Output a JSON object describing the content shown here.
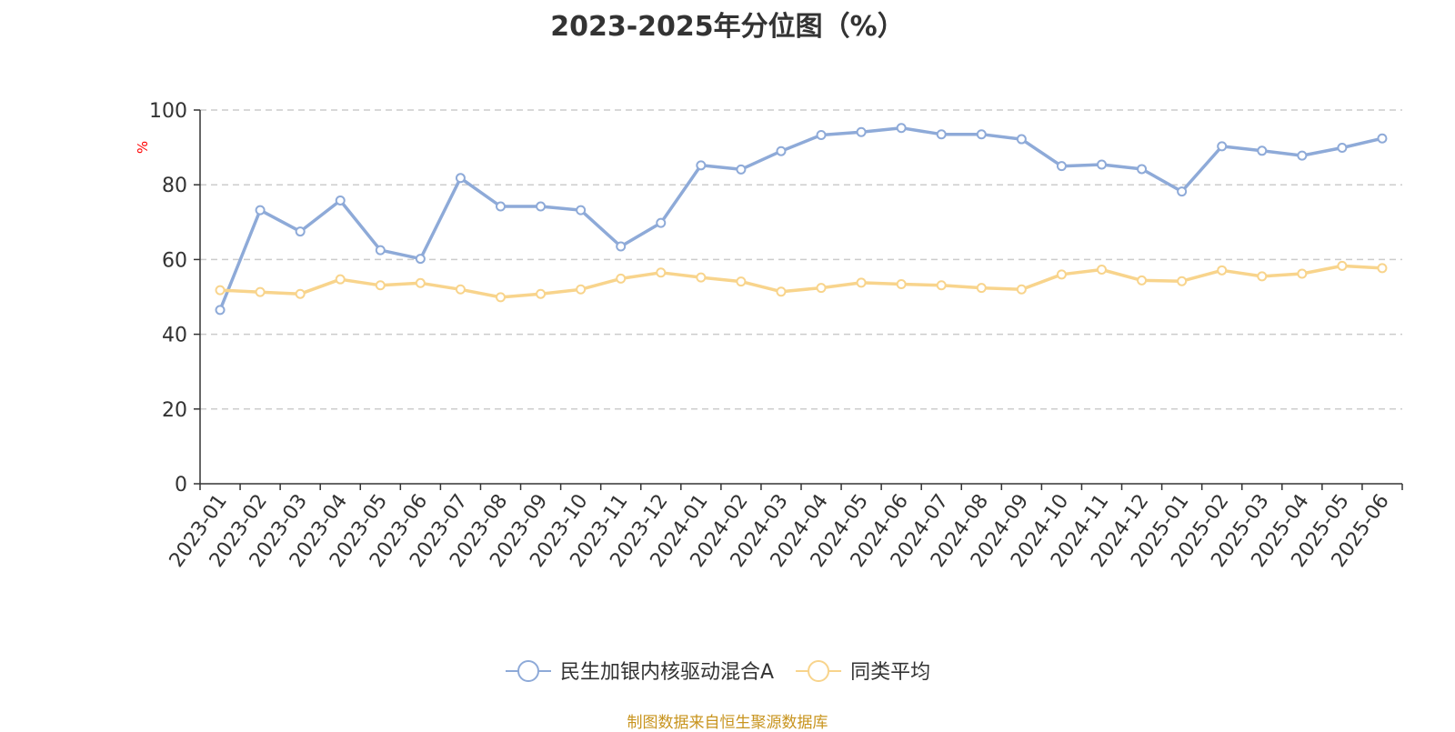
{
  "chart_data": {
    "type": "line",
    "title": "2023-2025年分位图（%）",
    "ylabel": "%",
    "xlabel": "",
    "ylim": [
      0,
      100
    ],
    "yticks": [
      0,
      20,
      40,
      60,
      80,
      100
    ],
    "grid": true,
    "legend_position": "bottom-center",
    "categories": [
      "2023-01",
      "2023-02",
      "2023-03",
      "2023-04",
      "2023-05",
      "2023-06",
      "2023-07",
      "2023-08",
      "2023-09",
      "2023-10",
      "2023-11",
      "2023-12",
      "2024-01",
      "2024-02",
      "2024-03",
      "2024-04",
      "2024-05",
      "2024-06",
      "2024-07",
      "2024-08",
      "2024-09",
      "2024-10",
      "2024-11",
      "2024-12",
      "2025-01",
      "2025-02",
      "2025-03",
      "2025-04",
      "2025-05",
      "2025-06"
    ],
    "series": [
      {
        "name": "民生加银内核驱动混合A",
        "color": "#8eaad8",
        "values": [
          46.5,
          73.2,
          67.5,
          75.8,
          62.5,
          60.2,
          81.8,
          74.2,
          74.2,
          73.2,
          63.5,
          69.8,
          85.2,
          84.1,
          89.0,
          93.3,
          94.1,
          95.2,
          93.5,
          93.5,
          92.2,
          85.0,
          85.4,
          84.2,
          78.2,
          90.3,
          89.1,
          87.8,
          89.9,
          92.4
        ]
      },
      {
        "name": "同类平均",
        "color": "#f8d48c",
        "values": [
          51.8,
          51.3,
          50.8,
          54.7,
          53.1,
          53.7,
          52.0,
          49.9,
          50.8,
          52.0,
          54.9,
          56.5,
          55.2,
          54.1,
          51.4,
          52.4,
          53.8,
          53.4,
          53.1,
          52.4,
          52.0,
          56.0,
          57.3,
          54.4,
          54.2,
          57.1,
          55.5,
          56.2,
          58.3,
          57.7
        ]
      }
    ]
  },
  "source_note": "制图数据来自恒生聚源数据库"
}
